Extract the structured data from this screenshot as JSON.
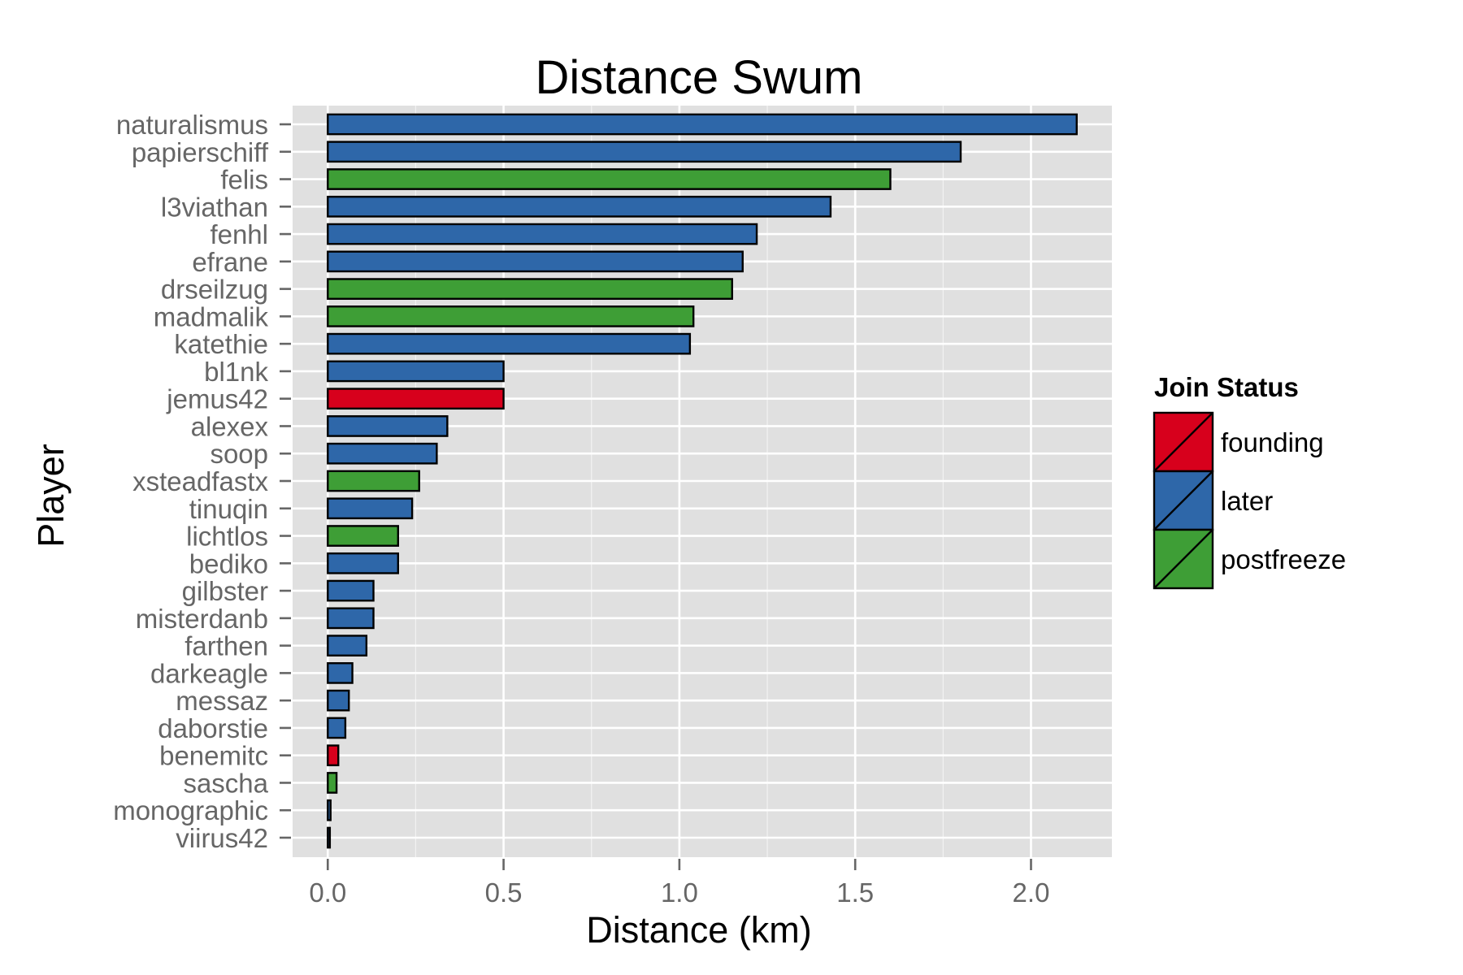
{
  "chart_data": {
    "type": "bar",
    "orientation": "horizontal",
    "title": "Distance Swum",
    "xlabel": "Distance (km)",
    "ylabel": "Player",
    "xlim": [
      -0.1,
      2.23
    ],
    "x_ticks": [
      0.0,
      0.5,
      1.0,
      1.5,
      2.0
    ],
    "x_tick_labels": [
      "0.0",
      "0.5",
      "1.0",
      "1.5",
      "2.0"
    ],
    "grid": true,
    "background_color": "#E0E0E0",
    "legend": {
      "title": "Join Status",
      "placement": "right",
      "entries": [
        {
          "name": "founding",
          "color": "#D7001C"
        },
        {
          "name": "later",
          "color": "#2E67A9"
        },
        {
          "name": "postfreeze",
          "color": "#3E9E36"
        }
      ]
    },
    "categories": [
      "naturalismus",
      "papierschiff",
      "felis",
      "l3viathan",
      "fenhl",
      "efrane",
      "drseilzug",
      "madmalik",
      "katethie",
      "bl1nk",
      "jemus42",
      "alexex",
      "soop",
      "xsteadfastx",
      "tinuqin",
      "lichtlos",
      "bediko",
      "gilbster",
      "misterdanb",
      "farthen",
      "darkeagle",
      "messaz",
      "daborstie",
      "benemitc",
      "sascha",
      "monographic",
      "viirus42"
    ],
    "values": [
      2.13,
      1.8,
      1.6,
      1.43,
      1.22,
      1.18,
      1.15,
      1.04,
      1.03,
      0.5,
      0.5,
      0.34,
      0.31,
      0.26,
      0.24,
      0.2,
      0.2,
      0.13,
      0.13,
      0.11,
      0.07,
      0.06,
      0.05,
      0.03,
      0.025,
      0.008,
      0.006
    ],
    "groups": [
      "later",
      "later",
      "postfreeze",
      "later",
      "later",
      "later",
      "postfreeze",
      "postfreeze",
      "later",
      "later",
      "founding",
      "later",
      "later",
      "postfreeze",
      "later",
      "postfreeze",
      "later",
      "later",
      "later",
      "later",
      "later",
      "later",
      "later",
      "founding",
      "postfreeze",
      "later",
      "later"
    ]
  }
}
